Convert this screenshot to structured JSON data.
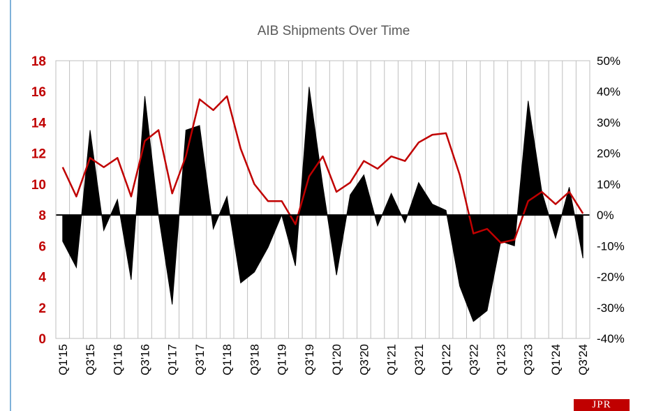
{
  "chart_data": {
    "type": "area+line",
    "title": "AIB Shipments Over Time",
    "left_axis": {
      "ticks": [
        "0",
        "2",
        "4",
        "6",
        "8",
        "10",
        "12",
        "14",
        "16",
        "18"
      ],
      "range": [
        0,
        18
      ],
      "color": "#c00000"
    },
    "right_axis": {
      "ticks": [
        "-40%",
        "-30%",
        "-20%",
        "-10%",
        "0%",
        "10%",
        "20%",
        "30%",
        "40%",
        "50%"
      ],
      "range": [
        -0.4,
        0.5
      ]
    },
    "x_tick_labels": [
      "Q1'15",
      "Q3'15",
      "Q1'16",
      "Q3'16",
      "Q1'17",
      "Q3'17",
      "Q1'18",
      "Q3'18",
      "Q1'19",
      "Q3'19",
      "Q1'20",
      "Q3'20",
      "Q1'21",
      "Q3'21",
      "Q1'22",
      "Q3'22",
      "Q1'23",
      "Q3'23",
      "Q1'24",
      "Q3'24"
    ],
    "quarters": [
      "Q1'15",
      "Q2'15",
      "Q3'15",
      "Q4'15",
      "Q1'16",
      "Q2'16",
      "Q3'16",
      "Q4'16",
      "Q1'17",
      "Q2'17",
      "Q3'17",
      "Q4'17",
      "Q1'18",
      "Q2'18",
      "Q3'18",
      "Q4'18",
      "Q1'19",
      "Q2'19",
      "Q3'19",
      "Q4'19",
      "Q1'20",
      "Q2'20",
      "Q3'20",
      "Q4'20",
      "Q1'21",
      "Q2'21",
      "Q3'21",
      "Q4'21",
      "Q1'22",
      "Q2'22",
      "Q3'22",
      "Q4'22",
      "Q1'23",
      "Q2'23",
      "Q3'23",
      "Q4'23",
      "Q1'24",
      "Q2'24",
      "Q3'24"
    ],
    "series": [
      {
        "axis": "left",
        "render": "area",
        "baseline": 8,
        "color": "#000000",
        "values": [
          6.3,
          4.6,
          13.5,
          7.0,
          9.0,
          3.8,
          15.7,
          8.0,
          2.2,
          13.5,
          13.8,
          7.1,
          9.2,
          3.6,
          4.3,
          5.9,
          8.0,
          4.7,
          16.3,
          9.9,
          4.1,
          9.3,
          10.6,
          7.3,
          9.4,
          7.5,
          10.1,
          8.7,
          8.3,
          3.4,
          1.1,
          1.8,
          6.3,
          6.0,
          15.4,
          9.5,
          6.5,
          9.8,
          5.2
        ]
      },
      {
        "axis": "right",
        "render": "line",
        "color": "#c00000",
        "values": [
          0.155,
          0.06,
          0.185,
          0.155,
          0.185,
          0.06,
          0.24,
          0.275,
          0.07,
          0.19,
          0.375,
          0.34,
          0.385,
          0.215,
          0.1,
          0.045,
          0.045,
          -0.03,
          0.125,
          0.19,
          0.075,
          0.105,
          0.175,
          0.15,
          0.19,
          0.175,
          0.235,
          0.26,
          0.265,
          0.13,
          -0.06,
          -0.045,
          -0.09,
          -0.08,
          0.045,
          0.075,
          0.035,
          0.075,
          0.005
        ]
      }
    ],
    "grid": "vertical"
  },
  "logo_text": "JPR"
}
